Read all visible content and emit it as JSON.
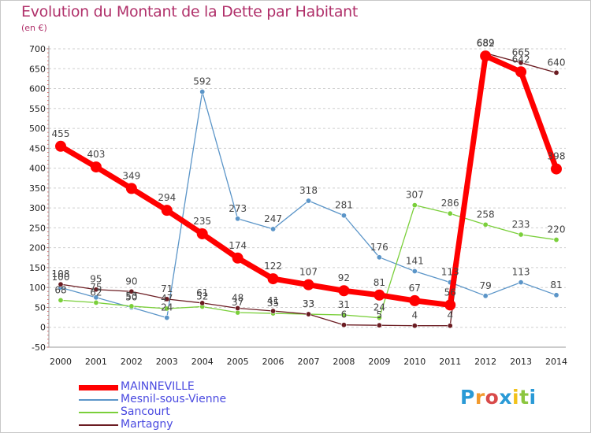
{
  "chart_data": {
    "type": "line",
    "title": "Evolution du Montant de la Dette par Habitant",
    "subtitle": "(en €)",
    "x": [
      "2000",
      "2001",
      "2002",
      "2003",
      "2004",
      "2005",
      "2006",
      "2007",
      "2008",
      "2009",
      "2010",
      "2011",
      "2012",
      "2013",
      "2014"
    ],
    "ylim": [
      -50,
      700
    ],
    "yticks": [
      -50,
      0,
      50,
      100,
      150,
      200,
      250,
      300,
      350,
      400,
      450,
      500,
      550,
      600,
      650,
      700
    ],
    "grid": "horizontal-dashed",
    "legend_position": "bottom-left",
    "series": [
      {
        "name": "MAINNEVILLE",
        "color": "#ff0000",
        "width": 7,
        "marker": 7,
        "values": [
          455,
          403,
          349,
          294,
          235,
          174,
          122,
          107,
          92,
          81,
          67,
          56,
          682,
          642,
          398
        ]
      },
      {
        "name": "Mesnil-sous-Vienne",
        "color": "#5b95c8",
        "width": 1.3,
        "marker": 3.2,
        "values": [
          100,
          75,
          50,
          24,
          592,
          273,
          247,
          318,
          281,
          176,
          141,
          113,
          79,
          113,
          81
        ]
      },
      {
        "name": "Sancourt",
        "color": "#7acf3a",
        "width": 1.3,
        "marker": 3.2,
        "values": [
          68,
          62,
          53,
          47,
          52,
          37,
          35,
          33,
          31,
          24,
          307,
          286,
          258,
          233,
          220
        ]
      },
      {
        "name": "Martagny",
        "color": "#6b1c22",
        "width": 1.3,
        "marker": 3.2,
        "values": [
          108,
          95,
          90,
          71,
          61,
          48,
          41,
          33,
          6,
          5,
          4,
          4,
          689,
          665,
          640
        ]
      }
    ]
  },
  "logo": {
    "letters": [
      "P",
      "r",
      "o",
      "x",
      "i",
      "t",
      "i"
    ],
    "colors": [
      "#2a9ad6",
      "#f29a2e",
      "#d84a4a",
      "#2a9ad6",
      "#f2c21a",
      "#8cc63f",
      "#2a9ad6"
    ]
  }
}
